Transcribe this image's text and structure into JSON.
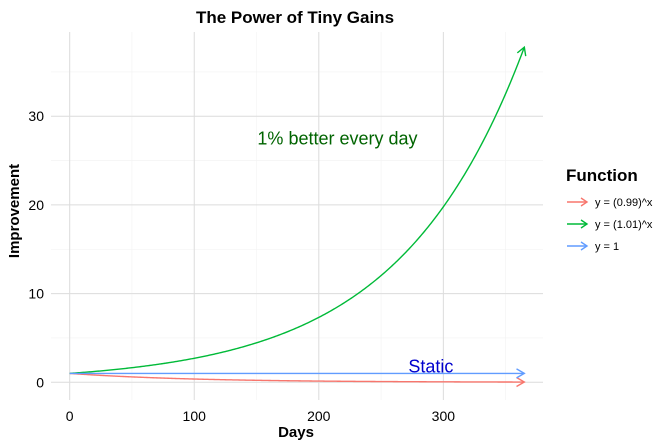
{
  "chart_data": {
    "type": "line",
    "title": "The Power of Tiny Gains",
    "xlabel": "Days",
    "ylabel": "Improvement",
    "xlim": [
      -15,
      380
    ],
    "ylim": [
      -2,
      39.5
    ],
    "x_ticks": [
      0,
      100,
      200,
      300
    ],
    "y_ticks": [
      0,
      10,
      20,
      30
    ],
    "grid": true,
    "legend_title": "Function",
    "legend_position": "right",
    "x_domain": [
      0,
      365
    ],
    "series": [
      {
        "name": "y = (0.99)^x",
        "function": "0.99^x",
        "color": "#F8766D",
        "arrow": true
      },
      {
        "name": "y = (1.01)^x",
        "function": "1.01^x",
        "color": "#00BA38",
        "arrow": true
      },
      {
        "name": "y = 1",
        "function": "1",
        "color": "#619CFF",
        "arrow": true
      }
    ],
    "annotations": [
      {
        "text": "1% better every day",
        "x": 215,
        "y": 27.5,
        "color": "#006400"
      },
      {
        "text": "Static",
        "x": 290,
        "y": 1.8,
        "color": "#0000CD"
      }
    ]
  }
}
